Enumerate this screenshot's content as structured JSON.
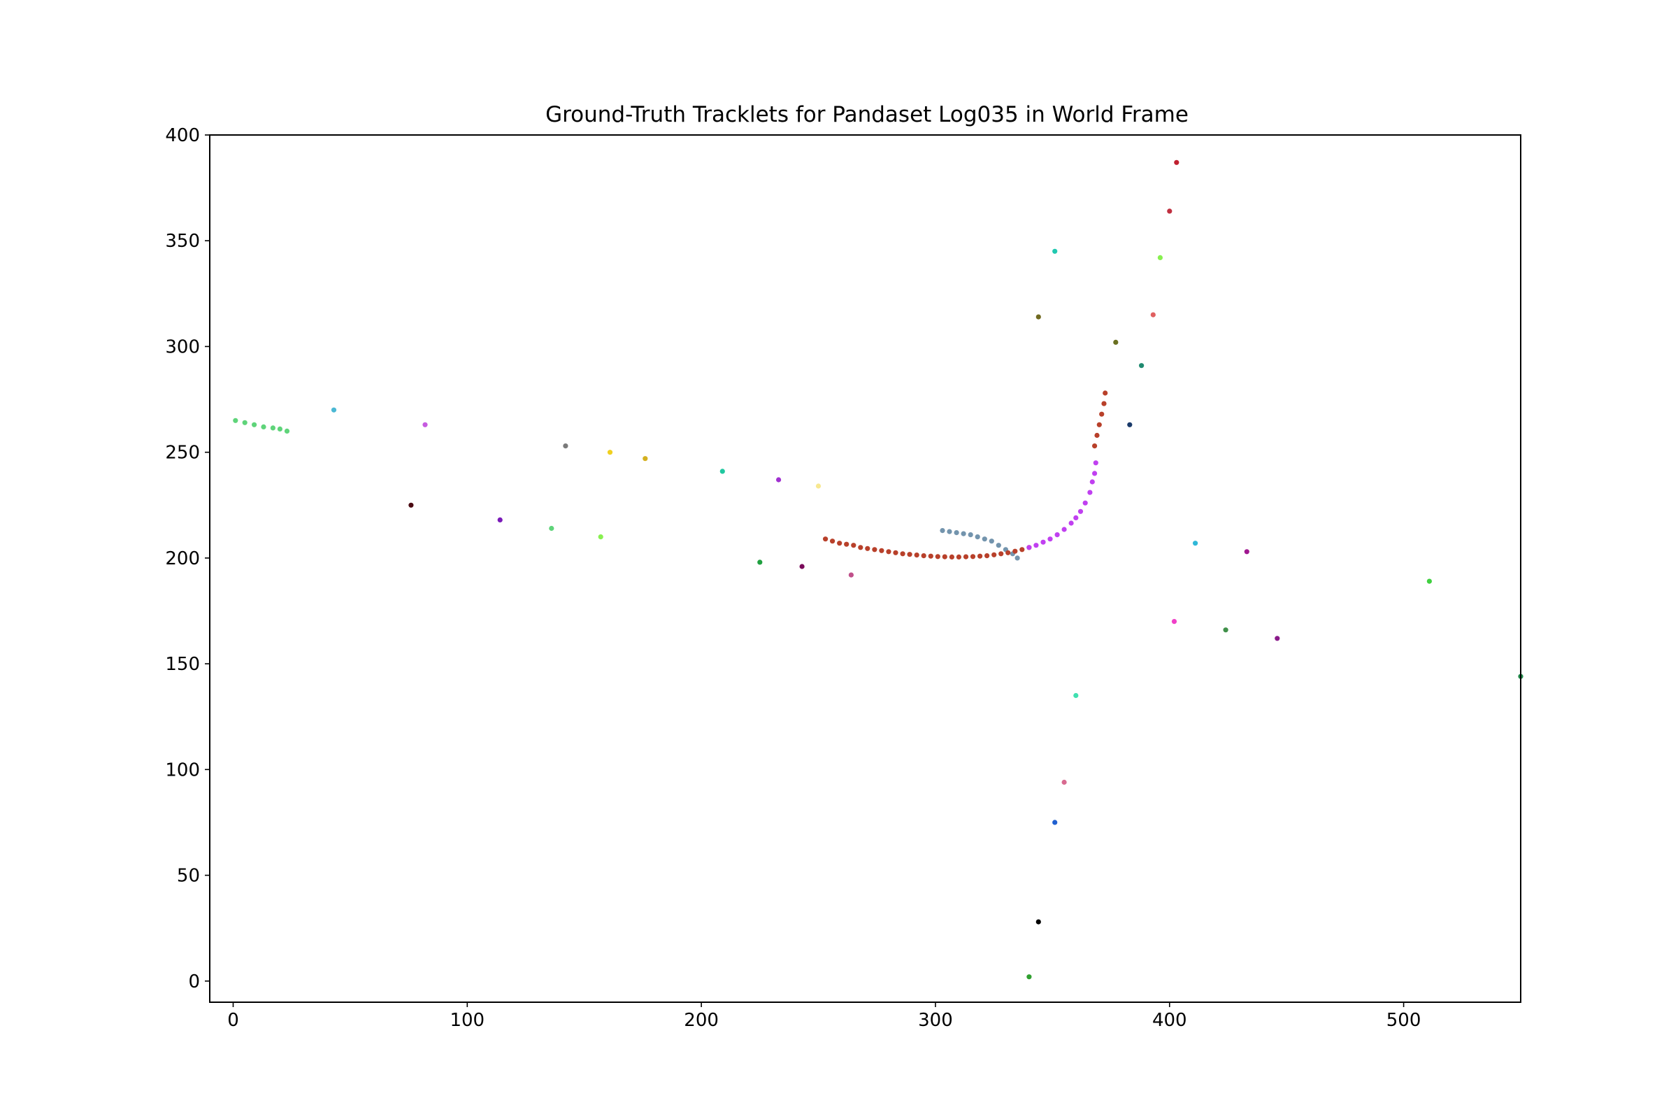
{
  "chart_data": {
    "type": "scatter",
    "title": "Ground-Truth Tracklets for Pandaset Log035 in World Frame",
    "xlabel": "",
    "ylabel": "",
    "xlim": [
      -10,
      550
    ],
    "ylim": [
      -10,
      400
    ],
    "xticks": [
      0,
      100,
      200,
      300,
      400,
      500
    ],
    "yticks": [
      0,
      50,
      100,
      150,
      200,
      250,
      300,
      350,
      400
    ],
    "grid": false,
    "legend": "none",
    "tracks": [
      {
        "color": "#5fd47a",
        "points": [
          [
            1,
            265
          ],
          [
            5,
            264
          ],
          [
            9,
            263
          ],
          [
            13,
            262
          ],
          [
            17,
            261.5
          ],
          [
            20,
            261
          ],
          [
            23,
            260
          ]
        ]
      },
      {
        "color": "#7394ad",
        "points": [
          [
            303,
            213
          ],
          [
            306,
            212.5
          ],
          [
            309,
            212
          ],
          [
            312,
            211.5
          ],
          [
            315,
            211
          ],
          [
            318,
            210
          ],
          [
            321,
            209
          ],
          [
            324,
            208
          ],
          [
            327,
            206
          ],
          [
            330,
            204
          ],
          [
            333,
            202
          ],
          [
            335,
            200
          ]
        ]
      },
      {
        "color": "#b8402a",
        "points": [
          [
            253,
            209
          ],
          [
            256,
            208
          ],
          [
            259,
            207
          ],
          [
            262,
            206.5
          ],
          [
            265,
            206
          ],
          [
            268,
            205
          ],
          [
            271,
            204.5
          ],
          [
            274,
            204
          ],
          [
            277,
            203.5
          ],
          [
            280,
            203
          ],
          [
            283,
            202.5
          ],
          [
            286,
            202
          ],
          [
            289,
            201.7
          ],
          [
            292,
            201.4
          ],
          [
            295,
            201.1
          ],
          [
            298,
            200.9
          ],
          [
            301,
            200.7
          ],
          [
            304,
            200.6
          ],
          [
            307,
            200.5
          ],
          [
            310,
            200.5
          ],
          [
            313,
            200.6
          ],
          [
            316,
            200.7
          ],
          [
            319,
            200.9
          ],
          [
            322,
            201.1
          ],
          [
            325,
            201.5
          ],
          [
            328,
            202
          ],
          [
            331,
            202.5
          ],
          [
            334,
            203.2
          ],
          [
            337,
            204
          ],
          [
            340,
            205
          ]
        ]
      },
      {
        "color": "#c040f0",
        "points": [
          [
            340,
            205
          ],
          [
            343,
            206
          ],
          [
            346,
            207.5
          ],
          [
            349,
            209
          ],
          [
            352,
            211
          ],
          [
            355,
            213.5
          ],
          [
            358,
            216.5
          ],
          [
            360,
            219
          ],
          [
            362,
            222
          ],
          [
            364,
            226
          ],
          [
            366,
            231
          ],
          [
            367,
            236
          ],
          [
            368,
            240
          ],
          [
            368.5,
            245
          ]
        ]
      },
      {
        "color": "#b8402a",
        "points": [
          [
            368,
            253
          ],
          [
            369,
            258
          ],
          [
            370,
            263
          ],
          [
            371,
            268
          ],
          [
            372,
            273
          ],
          [
            372.5,
            278
          ]
        ]
      },
      {
        "color": "#4bb8d4",
        "points": [
          [
            43,
            270
          ]
        ]
      },
      {
        "color": "#c65be0",
        "points": [
          [
            82,
            263
          ]
        ]
      },
      {
        "color": "#4a0a12",
        "points": [
          [
            76,
            225
          ]
        ]
      },
      {
        "color": "#7a1ab8",
        "points": [
          [
            114,
            218
          ]
        ]
      },
      {
        "color": "#5fd47a",
        "points": [
          [
            136,
            214
          ]
        ]
      },
      {
        "color": "#7a7a7a",
        "points": [
          [
            142,
            253
          ]
        ]
      },
      {
        "color": "#88f050",
        "points": [
          [
            157,
            210
          ]
        ]
      },
      {
        "color": "#f0d020",
        "points": [
          [
            161,
            250
          ]
        ]
      },
      {
        "color": "#d4b020",
        "points": [
          [
            176,
            247
          ]
        ]
      },
      {
        "color": "#20c8a0",
        "points": [
          [
            209,
            241
          ]
        ]
      },
      {
        "color": "#20a040",
        "points": [
          [
            225,
            198
          ]
        ]
      },
      {
        "color": "#a030d0",
        "points": [
          [
            233,
            237
          ]
        ]
      },
      {
        "color": "#7a0a5a",
        "points": [
          [
            243,
            196
          ]
        ]
      },
      {
        "color": "#f8e890",
        "points": [
          [
            250,
            234
          ]
        ]
      },
      {
        "color": "#c0508a",
        "points": [
          [
            264,
            192
          ]
        ]
      },
      {
        "color": "#706a20",
        "points": [
          [
            344,
            314
          ]
        ]
      },
      {
        "color": "#20c8b0",
        "points": [
          [
            351,
            345
          ]
        ]
      },
      {
        "color": "#6a7020",
        "points": [
          [
            377,
            302
          ]
        ]
      },
      {
        "color": "#208a70",
        "points": [
          [
            388,
            291
          ]
        ]
      },
      {
        "color": "#1a3a6a",
        "points": [
          [
            383,
            263
          ]
        ]
      },
      {
        "color": "#e06060",
        "points": [
          [
            393,
            315
          ]
        ]
      },
      {
        "color": "#88f050",
        "points": [
          [
            396,
            342
          ]
        ]
      },
      {
        "color": "#c03040",
        "points": [
          [
            400,
            364
          ]
        ]
      },
      {
        "color": "#c02030",
        "points": [
          [
            403,
            387
          ]
        ]
      },
      {
        "color": "#30b8d8",
        "points": [
          [
            411,
            207
          ]
        ]
      },
      {
        "color": "#a01890",
        "points": [
          [
            433,
            203
          ]
        ]
      },
      {
        "color": "#f040c8",
        "points": [
          [
            402,
            170
          ]
        ]
      },
      {
        "color": "#40904a",
        "points": [
          [
            424,
            166
          ]
        ]
      },
      {
        "color": "#8a1a8a",
        "points": [
          [
            446,
            162
          ]
        ]
      },
      {
        "color": "#40d040",
        "points": [
          [
            511,
            189
          ]
        ]
      },
      {
        "color": "#208a4a",
        "points": [
          [
            550,
            144
          ]
        ]
      },
      {
        "color": "#40e0b0",
        "points": [
          [
            360,
            135
          ]
        ]
      },
      {
        "color": "#d86a90",
        "points": [
          [
            355,
            94
          ]
        ]
      },
      {
        "color": "#2060d0",
        "points": [
          [
            351,
            75
          ]
        ]
      },
      {
        "color": "#000000",
        "points": [
          [
            344,
            28
          ]
        ]
      },
      {
        "color": "#30a030",
        "points": [
          [
            340,
            2
          ]
        ]
      }
    ]
  }
}
